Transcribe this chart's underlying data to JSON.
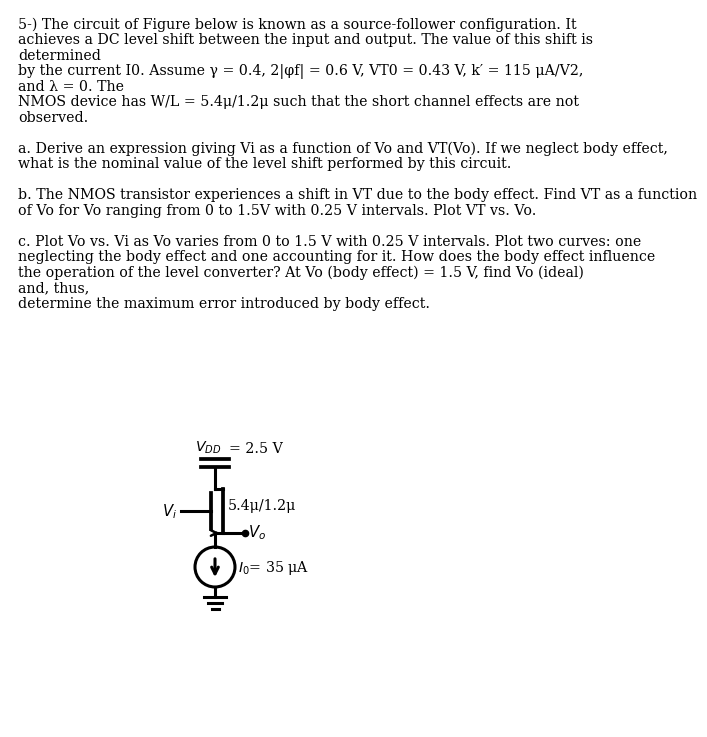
{
  "line1": "5-) The circuit of Figure below is known as a source-follower configuration. It",
  "line2": "achieves a DC level shift between the input and output. The value of this shift is",
  "line3": "determined",
  "line4": "by the current I0. Assume γ = 0.4, 2|φf| = 0.6 V, VT0 = 0.43 V, k′ = 115 μA/V2,",
  "line5": "and λ = 0. The",
  "line6": "NMOS device has W/L = 5.4μ/1.2μ such that the short channel effects are not",
  "line7": "observed.",
  "line_a1": "a. Derive an expression giving Vi as a function of Vo and VT(Vo). If we neglect body effect,",
  "line_a2": "what is the nominal value of the level shift performed by this circuit.",
  "line_b1": "b. The NMOS transistor experiences a shift in VT due to the body effect. Find VT as a function",
  "line_b2": "of Vo for Vo ranging from 0 to 1.5V with 0.25 V intervals. Plot VT vs. Vo.",
  "line_c1": "c. Plot Vo vs. Vi as Vo varies from 0 to 1.5 V with 0.25 V intervals. Plot two curves: one",
  "line_c2": "neglecting the body effect and one accounting for it. How does the body effect influence",
  "line_c3": "the operation of the level converter? At Vo (body effect) = 1.5 V, find Vo (ideal)",
  "line_c4": "and, thus,",
  "line_c5": "determine the maximum error introduced by body effect.",
  "background_color": "#ffffff",
  "text_color": "#000000",
  "font_size": 10.2
}
